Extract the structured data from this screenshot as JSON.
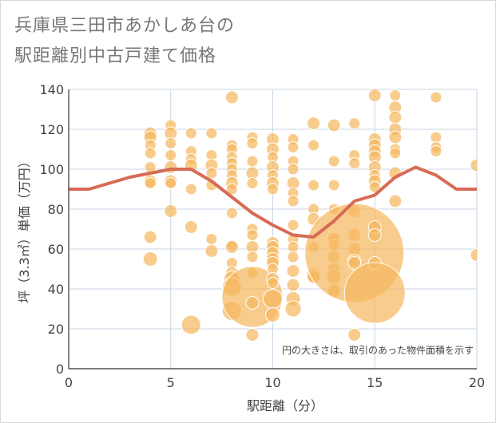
{
  "title_lines": [
    "兵庫県三田市あかしあ台の",
    "駅距離別中古戸建て価格"
  ],
  "chart_data": {
    "type": "scatter",
    "title": "兵庫県三田市あかしあ台の駅距離別中古戸建て価格",
    "xlabel": "駅距離（分）",
    "ylabel": "坪（3.3㎡）単価（万円）",
    "xlim": [
      0,
      20
    ],
    "ylim": [
      0,
      140
    ],
    "x_ticks": [
      "0",
      "5",
      "10",
      "15",
      "20"
    ],
    "y_ticks": [
      "0",
      "20",
      "40",
      "60",
      "80",
      "100",
      "120",
      "140"
    ],
    "note": "円の大きさは、取引のあった物件面積を示す",
    "colors": {
      "bubble": "#f5b860",
      "line": "#d76b55",
      "grid": "#c9d6e3"
    },
    "trend_line": {
      "x": [
        0,
        1,
        2,
        3,
        4,
        5,
        6,
        7,
        8,
        9,
        10,
        11,
        12,
        13,
        14,
        15,
        16,
        17,
        18,
        19,
        20
      ],
      "y": [
        90,
        90,
        93,
        96,
        98,
        100,
        100,
        94,
        86,
        78,
        72,
        67,
        66,
        74,
        84,
        87,
        96,
        101,
        97,
        90,
        90
      ]
    },
    "bubbles": [
      {
        "x": 4,
        "y": 118,
        "r": 8
      },
      {
        "x": 4,
        "y": 116,
        "r": 8
      },
      {
        "x": 4,
        "y": 112,
        "r": 7
      },
      {
        "x": 4,
        "y": 108,
        "r": 7
      },
      {
        "x": 4,
        "y": 101,
        "r": 7
      },
      {
        "x": 4,
        "y": 94,
        "r": 8
      },
      {
        "x": 4,
        "y": 93,
        "r": 7
      },
      {
        "x": 4,
        "y": 66,
        "r": 8
      },
      {
        "x": 4,
        "y": 55,
        "r": 9
      },
      {
        "x": 5,
        "y": 122,
        "r": 7
      },
      {
        "x": 5,
        "y": 118,
        "r": 8
      },
      {
        "x": 5,
        "y": 113,
        "r": 7
      },
      {
        "x": 5,
        "y": 107,
        "r": 7
      },
      {
        "x": 5,
        "y": 101,
        "r": 8
      },
      {
        "x": 5,
        "y": 94,
        "r": 8
      },
      {
        "x": 5,
        "y": 93,
        "r": 7
      },
      {
        "x": 5,
        "y": 79,
        "r": 8
      },
      {
        "x": 6,
        "y": 118,
        "r": 7
      },
      {
        "x": 6,
        "y": 109,
        "r": 7
      },
      {
        "x": 6,
        "y": 105,
        "r": 7
      },
      {
        "x": 6,
        "y": 102,
        "r": 8
      },
      {
        "x": 6,
        "y": 90,
        "r": 7
      },
      {
        "x": 6,
        "y": 71,
        "r": 8
      },
      {
        "x": 6,
        "y": 22,
        "r": 12
      },
      {
        "x": 7,
        "y": 118,
        "r": 7
      },
      {
        "x": 7,
        "y": 107,
        "r": 7
      },
      {
        "x": 7,
        "y": 102,
        "r": 8
      },
      {
        "x": 7,
        "y": 98,
        "r": 7
      },
      {
        "x": 7,
        "y": 92,
        "r": 7
      },
      {
        "x": 7,
        "y": 65,
        "r": 7
      },
      {
        "x": 7,
        "y": 59,
        "r": 8
      },
      {
        "x": 8,
        "y": 136,
        "r": 8
      },
      {
        "x": 8,
        "y": 112,
        "r": 7
      },
      {
        "x": 8,
        "y": 110,
        "r": 7
      },
      {
        "x": 8,
        "y": 106,
        "r": 7
      },
      {
        "x": 8,
        "y": 103,
        "r": 7
      },
      {
        "x": 8,
        "y": 100,
        "r": 7
      },
      {
        "x": 8,
        "y": 97,
        "r": 7
      },
      {
        "x": 8,
        "y": 93,
        "r": 8
      },
      {
        "x": 8,
        "y": 90,
        "r": 7
      },
      {
        "x": 8,
        "y": 78,
        "r": 7
      },
      {
        "x": 8,
        "y": 62,
        "r": 7
      },
      {
        "x": 8,
        "y": 61,
        "r": 8
      },
      {
        "x": 8,
        "y": 53,
        "r": 7
      },
      {
        "x": 8,
        "y": 48,
        "r": 8
      },
      {
        "x": 8,
        "y": 45,
        "r": 10
      },
      {
        "x": 8,
        "y": 41,
        "r": 12
      },
      {
        "x": 8,
        "y": 29,
        "r": 12
      },
      {
        "x": 9,
        "y": 116,
        "r": 7
      },
      {
        "x": 9,
        "y": 113,
        "r": 7
      },
      {
        "x": 9,
        "y": 104,
        "r": 7
      },
      {
        "x": 9,
        "y": 98,
        "r": 8
      },
      {
        "x": 9,
        "y": 93,
        "r": 7
      },
      {
        "x": 9,
        "y": 70,
        "r": 7
      },
      {
        "x": 9,
        "y": 67,
        "r": 7
      },
      {
        "x": 9,
        "y": 61,
        "r": 8
      },
      {
        "x": 9,
        "y": 56,
        "r": 7
      },
      {
        "x": 9,
        "y": 48,
        "r": 7
      },
      {
        "x": 9,
        "y": 36,
        "r": 38
      },
      {
        "x": 9,
        "y": 33,
        "r": 8
      },
      {
        "x": 9,
        "y": 17,
        "r": 8
      },
      {
        "x": 10,
        "y": 115,
        "r": 8
      },
      {
        "x": 10,
        "y": 110,
        "r": 8
      },
      {
        "x": 10,
        "y": 106,
        "r": 7
      },
      {
        "x": 10,
        "y": 101,
        "r": 8
      },
      {
        "x": 10,
        "y": 97,
        "r": 7
      },
      {
        "x": 10,
        "y": 93,
        "r": 8
      },
      {
        "x": 10,
        "y": 90,
        "r": 7
      },
      {
        "x": 10,
        "y": 63,
        "r": 8
      },
      {
        "x": 10,
        "y": 61,
        "r": 8
      },
      {
        "x": 10,
        "y": 58,
        "r": 8
      },
      {
        "x": 10,
        "y": 55,
        "r": 8
      },
      {
        "x": 10,
        "y": 53,
        "r": 8
      },
      {
        "x": 10,
        "y": 50,
        "r": 7
      },
      {
        "x": 10,
        "y": 45,
        "r": 8
      },
      {
        "x": 10,
        "y": 43,
        "r": 7
      },
      {
        "x": 10,
        "y": 35,
        "r": 12
      },
      {
        "x": 10,
        "y": 27,
        "r": 9
      },
      {
        "x": 11,
        "y": 115,
        "r": 7
      },
      {
        "x": 11,
        "y": 111,
        "r": 7
      },
      {
        "x": 11,
        "y": 104,
        "r": 7
      },
      {
        "x": 11,
        "y": 100,
        "r": 7
      },
      {
        "x": 11,
        "y": 93,
        "r": 8
      },
      {
        "x": 11,
        "y": 88,
        "r": 7
      },
      {
        "x": 11,
        "y": 84,
        "r": 7
      },
      {
        "x": 11,
        "y": 72,
        "r": 7
      },
      {
        "x": 11,
        "y": 65,
        "r": 7
      },
      {
        "x": 11,
        "y": 61,
        "r": 7
      },
      {
        "x": 11,
        "y": 56,
        "r": 7
      },
      {
        "x": 11,
        "y": 49,
        "r": 8
      },
      {
        "x": 11,
        "y": 42,
        "r": 8
      },
      {
        "x": 11,
        "y": 35,
        "r": 9
      },
      {
        "x": 11,
        "y": 30,
        "r": 10
      },
      {
        "x": 12,
        "y": 123,
        "r": 8
      },
      {
        "x": 12,
        "y": 112,
        "r": 7
      },
      {
        "x": 12,
        "y": 92,
        "r": 7
      },
      {
        "x": 12,
        "y": 80,
        "r": 7
      },
      {
        "x": 12,
        "y": 75,
        "r": 8
      },
      {
        "x": 12,
        "y": 61,
        "r": 7
      },
      {
        "x": 12,
        "y": 47,
        "r": 9
      },
      {
        "x": 12,
        "y": 46,
        "r": 8
      },
      {
        "x": 13,
        "y": 122,
        "r": 8
      },
      {
        "x": 13,
        "y": 104,
        "r": 7
      },
      {
        "x": 13,
        "y": 92,
        "r": 7
      },
      {
        "x": 13,
        "y": 80,
        "r": 7
      },
      {
        "x": 13,
        "y": 65,
        "r": 8
      },
      {
        "x": 13,
        "y": 62,
        "r": 7
      },
      {
        "x": 13,
        "y": 56,
        "r": 8
      },
      {
        "x": 13,
        "y": 50,
        "r": 8
      },
      {
        "x": 13,
        "y": 46,
        "r": 9
      },
      {
        "x": 13,
        "y": 40,
        "r": 8
      },
      {
        "x": 13,
        "y": 39,
        "r": 8
      },
      {
        "x": 14,
        "y": 123,
        "r": 7
      },
      {
        "x": 14,
        "y": 107,
        "r": 7
      },
      {
        "x": 14,
        "y": 103,
        "r": 7
      },
      {
        "x": 14,
        "y": 79,
        "r": 8
      },
      {
        "x": 14,
        "y": 67,
        "r": 8
      },
      {
        "x": 14,
        "y": 60,
        "r": 8
      },
      {
        "x": 14,
        "y": 58,
        "r": 62
      },
      {
        "x": 14,
        "y": 54,
        "r": 8
      },
      {
        "x": 14,
        "y": 53,
        "r": 8
      },
      {
        "x": 14,
        "y": 17,
        "r": 8
      },
      {
        "x": 15,
        "y": 137,
        "r": 8
      },
      {
        "x": 15,
        "y": 115,
        "r": 8
      },
      {
        "x": 15,
        "y": 112,
        "r": 8
      },
      {
        "x": 15,
        "y": 109,
        "r": 8
      },
      {
        "x": 15,
        "y": 106,
        "r": 8
      },
      {
        "x": 15,
        "y": 101,
        "r": 8
      },
      {
        "x": 15,
        "y": 97,
        "r": 7
      },
      {
        "x": 15,
        "y": 94,
        "r": 8
      },
      {
        "x": 15,
        "y": 91,
        "r": 7
      },
      {
        "x": 15,
        "y": 71,
        "r": 8
      },
      {
        "x": 15,
        "y": 67,
        "r": 8
      },
      {
        "x": 15,
        "y": 53,
        "r": 8
      },
      {
        "x": 15,
        "y": 38,
        "r": 38
      },
      {
        "x": 16,
        "y": 137,
        "r": 7
      },
      {
        "x": 16,
        "y": 131,
        "r": 8
      },
      {
        "x": 16,
        "y": 126,
        "r": 8
      },
      {
        "x": 16,
        "y": 120,
        "r": 8
      },
      {
        "x": 16,
        "y": 116,
        "r": 8
      },
      {
        "x": 16,
        "y": 110,
        "r": 7
      },
      {
        "x": 16,
        "y": 108,
        "r": 7
      },
      {
        "x": 16,
        "y": 98,
        "r": 8
      },
      {
        "x": 16,
        "y": 84,
        "r": 8
      },
      {
        "x": 18,
        "y": 136,
        "r": 7
      },
      {
        "x": 18,
        "y": 116,
        "r": 7
      },
      {
        "x": 18,
        "y": 111,
        "r": 7
      },
      {
        "x": 18,
        "y": 109,
        "r": 7
      },
      {
        "x": 20,
        "y": 102,
        "r": 8
      },
      {
        "x": 20,
        "y": 57,
        "r": 8
      }
    ]
  }
}
